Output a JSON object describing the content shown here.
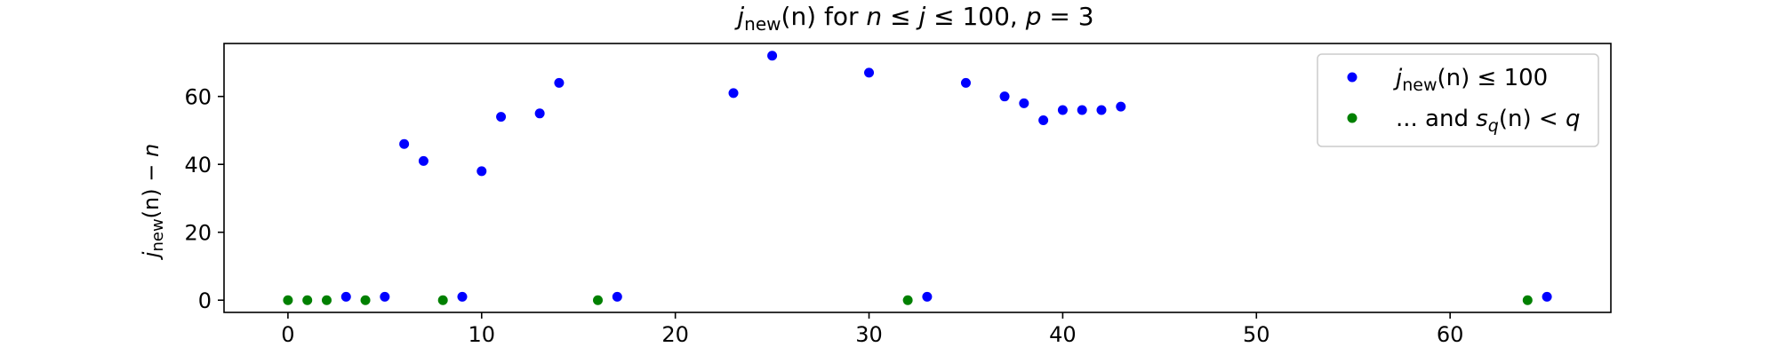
{
  "chart_data": {
    "type": "scatter",
    "title": {
      "plain": "j_new(n) for n ≤ j ≤ 100, p = 3",
      "j": "j",
      "sub": "new",
      "arg": "(n)",
      "mid": " for ",
      "n": "n",
      "le1": " ≤ ",
      "j2": "j",
      "le2": " ≤ 100, ",
      "p": "p",
      "eq": " = 3"
    },
    "xlabel": "",
    "ylabel": {
      "plain": "j_new(n) − n",
      "j": "j",
      "sub": "new",
      "arg": "(n) − ",
      "n": "n"
    },
    "xlim": [
      -3.3,
      68.3
    ],
    "ylim": [
      -3.6,
      75.6
    ],
    "xticks": [
      0,
      10,
      20,
      30,
      40,
      50,
      60
    ],
    "yticks": [
      0,
      20,
      40,
      60
    ],
    "grid": false,
    "legend_position": "top-right",
    "series": [
      {
        "name": "j_new(n) ≤ 100",
        "legend": {
          "j": "j",
          "sub": "new",
          "rest": "(n) ≤ 100"
        },
        "color": "#0000ff",
        "x": [
          3,
          5,
          6,
          7,
          9,
          10,
          11,
          13,
          14,
          17,
          23,
          25,
          30,
          33,
          35,
          37,
          38,
          39,
          40,
          41,
          42,
          43,
          65
        ],
        "y": [
          1,
          1,
          46,
          41,
          1,
          38,
          54,
          55,
          64,
          1,
          61,
          72,
          67,
          1,
          64,
          60,
          58,
          53,
          56,
          56,
          56,
          57,
          1
        ]
      },
      {
        "name": "... and s_q(n) < q",
        "legend": {
          "pre": "... and ",
          "s": "s",
          "sub": "q",
          "arg": "(n) < ",
          "q": "q"
        },
        "color": "#008000",
        "x": [
          0,
          1,
          2,
          4,
          8,
          16,
          32,
          64
        ],
        "y": [
          0,
          0,
          0,
          0,
          0,
          0,
          0,
          0
        ]
      }
    ]
  }
}
